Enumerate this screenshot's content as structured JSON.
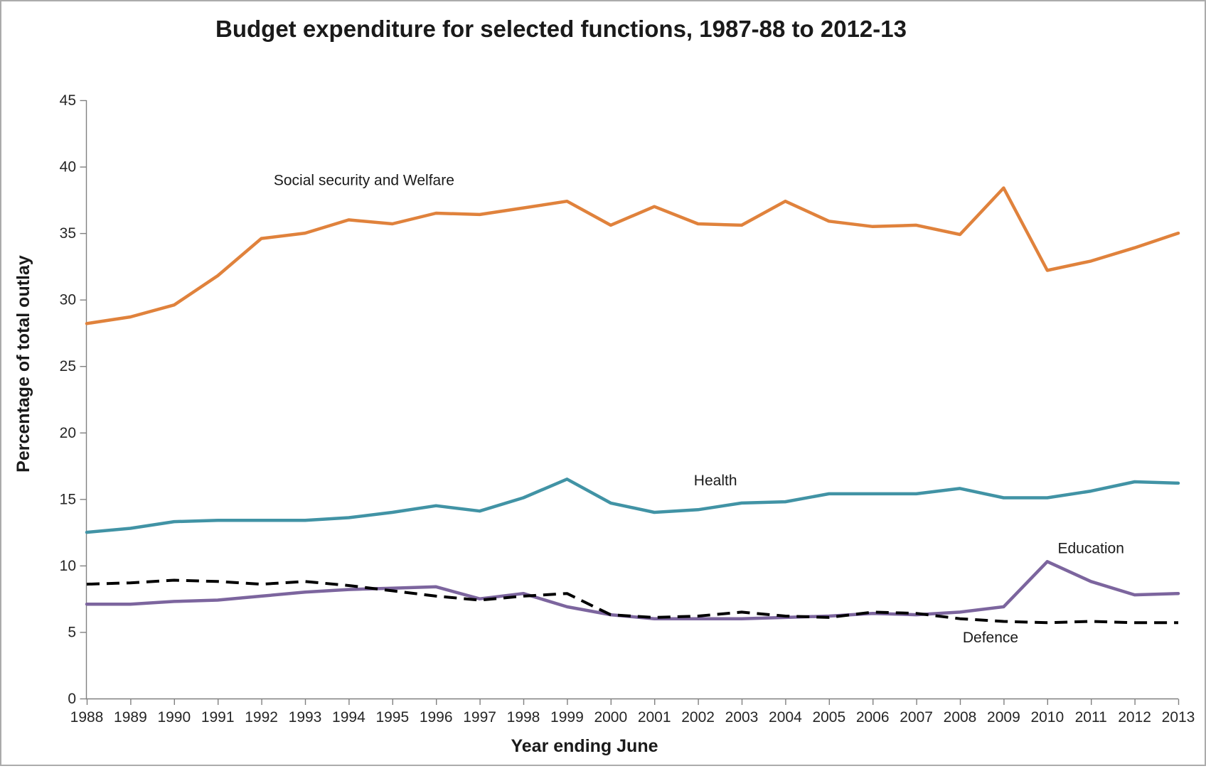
{
  "chart_data": {
    "type": "line",
    "title": "Budget expenditure for selected functions, 1987-88 to 2012-13",
    "xlabel": "Year ending June",
    "ylabel": "Percentage of total outlay",
    "ylim": [
      0,
      45
    ],
    "yticks": [
      0,
      5,
      10,
      15,
      20,
      25,
      30,
      35,
      40,
      45
    ],
    "grid": false,
    "legend_position": "inline-labels",
    "x": [
      1988,
      1989,
      1990,
      1991,
      1992,
      1993,
      1994,
      1995,
      1996,
      1997,
      1998,
      1999,
      2000,
      2001,
      2002,
      2003,
      2004,
      2005,
      2006,
      2007,
      2008,
      2009,
      2010,
      2011,
      2012,
      2013
    ],
    "series": [
      {
        "name": "Social security and Welfare",
        "color": "#e0823c",
        "dash": null,
        "values": [
          28.2,
          28.7,
          29.6,
          31.8,
          34.6,
          35.0,
          36.0,
          35.7,
          36.5,
          36.4,
          36.9,
          37.4,
          35.6,
          37.0,
          35.7,
          35.6,
          37.4,
          35.9,
          35.5,
          35.6,
          34.9,
          38.4,
          32.2,
          32.9,
          33.9,
          35.0
        ]
      },
      {
        "name": "Health",
        "color": "#4193a5",
        "dash": null,
        "values": [
          12.5,
          12.8,
          13.3,
          13.4,
          13.4,
          13.4,
          13.6,
          14.0,
          14.5,
          14.1,
          15.1,
          16.5,
          14.7,
          14.0,
          14.2,
          14.7,
          14.8,
          15.4,
          15.4,
          15.4,
          15.8,
          15.1,
          15.1,
          15.6,
          16.3,
          16.2
        ]
      },
      {
        "name": "Education",
        "color": "#7c659e",
        "dash": null,
        "values": [
          7.1,
          7.1,
          7.3,
          7.4,
          7.7,
          8.0,
          8.2,
          8.3,
          8.4,
          7.5,
          7.9,
          6.9,
          6.3,
          6.0,
          6.0,
          6.0,
          6.1,
          6.2,
          6.4,
          6.3,
          6.5,
          6.9,
          10.3,
          8.8,
          7.8,
          7.9
        ]
      },
      {
        "name": "Defence",
        "color": "#000000",
        "dash": [
          18,
          10
        ],
        "values": [
          8.6,
          8.7,
          8.9,
          8.8,
          8.6,
          8.8,
          8.5,
          8.1,
          7.7,
          7.4,
          7.7,
          7.9,
          6.3,
          6.1,
          6.2,
          6.5,
          6.2,
          6.1,
          6.5,
          6.4,
          6.0,
          5.8,
          5.7,
          5.8,
          5.7,
          5.7
        ]
      }
    ],
    "annotations": [
      {
        "text": "Social security and Welfare",
        "x": 1994.35,
        "y": 39.0
      },
      {
        "text": "Health",
        "x": 2002.4,
        "y": 16.4
      },
      {
        "text": "Education",
        "x": 2011.0,
        "y": 11.3
      },
      {
        "text": "Defence",
        "x": 2008.7,
        "y": 4.6
      }
    ]
  }
}
